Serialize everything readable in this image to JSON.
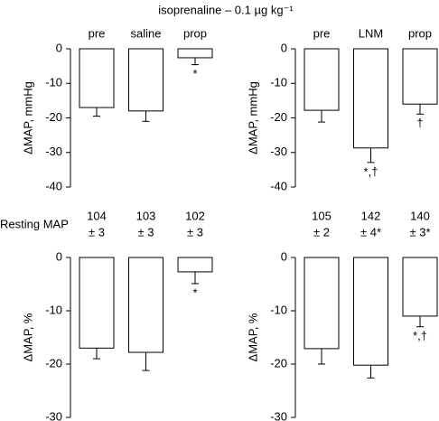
{
  "title": "isoprenaline – 0.1 µg kg⁻¹",
  "resting_map": {
    "label": "Resting MAP",
    "left": [
      [
        "104",
        "± 3"
      ],
      [
        "103",
        "± 3"
      ],
      [
        "102",
        "± 3"
      ]
    ],
    "right": [
      [
        "105",
        "± 2"
      ],
      [
        "142",
        "± 4*"
      ],
      [
        "140",
        "± 3*"
      ]
    ]
  },
  "chart_data": [
    {
      "type": "bar",
      "ylabel": "ΔMAP, mmHg",
      "categories": [
        "pre",
        "saline",
        "prop"
      ],
      "values": [
        -17,
        -18,
        -2.6
      ],
      "errors": [
        2.5,
        3,
        2
      ],
      "bar_labels": [
        null,
        null,
        "*"
      ],
      "color": "#ffffff",
      "ylim": [
        -40,
        0
      ],
      "yticks": [
        0,
        -10,
        -20,
        -30,
        -40
      ]
    },
    {
      "type": "bar",
      "ylabel": "ΔMAP, mmHg",
      "categories": [
        "pre",
        "LNM",
        "prop"
      ],
      "values": [
        -17.8,
        -28.7,
        -16
      ],
      "errors": [
        3.4,
        4.2,
        2.9
      ],
      "bar_labels": [
        null,
        "*,†",
        "†"
      ],
      "color": "#ffffff",
      "ylim": [
        -40,
        0
      ],
      "yticks": [
        0,
        -10,
        -20,
        -30,
        -40
      ]
    },
    {
      "type": "bar",
      "ylabel": "ΔMAP, %",
      "categories": [
        null,
        null,
        null
      ],
      "values": [
        -17,
        -17.8,
        -2.7
      ],
      "errors": [
        2,
        3.4,
        2.2
      ],
      "bar_labels": [
        null,
        null,
        "*"
      ],
      "color": "#ffffff",
      "ylim": [
        -30,
        0
      ],
      "yticks": [
        0,
        -10,
        -20,
        -30
      ]
    },
    {
      "type": "bar",
      "ylabel": "ΔMAP, %",
      "categories": [
        null,
        null,
        null
      ],
      "values": [
        -17.1,
        -20.2,
        -11
      ],
      "errors": [
        2.9,
        2.4,
        2
      ],
      "bar_labels": [
        null,
        null,
        "*,†"
      ],
      "color": "#ffffff",
      "ylim": [
        -30,
        0
      ],
      "yticks": [
        0,
        -10,
        -20,
        -30
      ]
    }
  ]
}
